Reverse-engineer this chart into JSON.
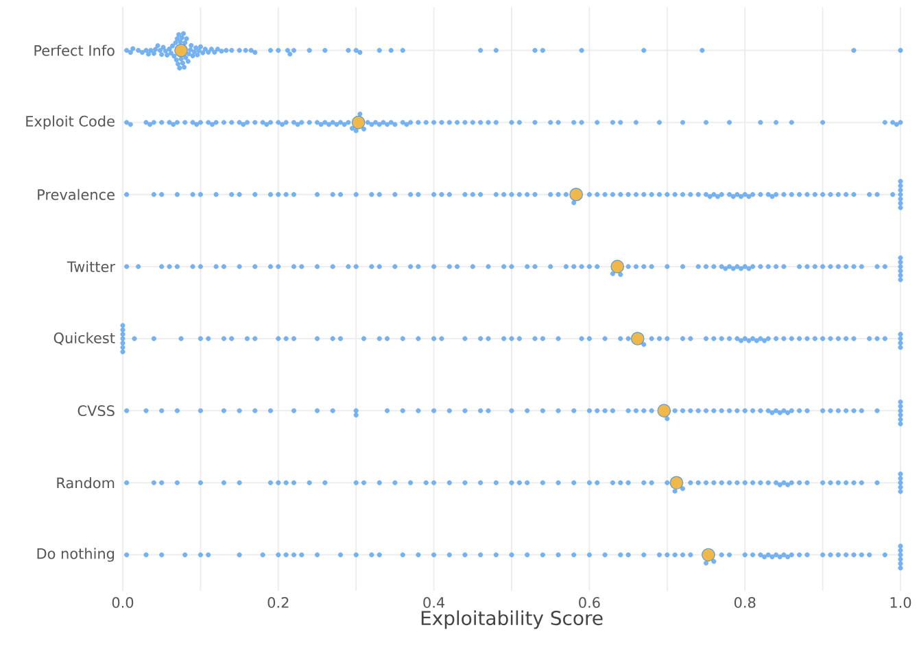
{
  "chart_data": {
    "type": "scatter",
    "orientation": "horizontal",
    "xlabel": "Exploitability Score",
    "categories": [
      "Perfect Info",
      "Exploit Code",
      "Prevalence",
      "Twitter",
      "Quickest",
      "CVSS",
      "Random",
      "Do nothing"
    ],
    "xlim": [
      0,
      1
    ],
    "xticks": [
      {
        "value": 0,
        "label": "0.0"
      },
      {
        "value": 0.1,
        "label": null
      },
      0.2,
      {
        "value": 0.3,
        "label": null
      },
      0.4,
      {
        "value": 0.5,
        "label": null
      },
      0.6,
      {
        "value": 0.7,
        "label": null
      },
      0.8,
      {
        "value": 0.9,
        "label": null
      },
      {
        "value": 1,
        "label": "1.0"
      }
    ],
    "grid": true,
    "series": [
      {
        "type": "scatter",
        "color": "#74b2f3",
        "x": [
          "Perfect Info",
          "Perfect Info",
          "Perfect Info",
          "Perfect Info",
          "Perfect Info",
          "Perfect Info",
          "Perfect Info",
          "Perfect Info",
          "Perfect Info",
          "Perfect Info",
          "Perfect Info",
          "Perfect Info",
          "Perfect Info",
          "Perfect Info",
          "Perfect Info",
          "Perfect Info",
          "Perfect Info",
          "Perfect Info",
          "Perfect Info",
          "Perfect Info",
          "Perfect Info",
          "Perfect Info",
          "Perfect Info",
          "Perfect Info",
          "Perfect Info",
          "Perfect Info",
          "Perfect Info",
          "Perfect Info",
          "Perfect Info",
          "Perfect Info",
          "Perfect Info",
          "Perfect Info",
          "Perfect Info",
          "Perfect Info",
          "Perfect Info",
          "Perfect Info",
          "Perfect Info",
          "Perfect Info",
          "Perfect Info",
          "Perfect Info",
          "Perfect Info",
          "Perfect Info",
          "Perfect Info",
          "Perfect Info",
          "Perfect Info",
          "Perfect Info",
          "Perfect Info",
          "Perfect Info",
          "Perfect Info",
          "Perfect Info",
          "Perfect Info",
          "Perfect Info",
          "Perfect Info",
          "Perfect Info",
          "Perfect Info",
          "Perfect Info",
          "Perfect Info",
          "Perfect Info",
          "Perfect Info",
          "Perfect Info",
          "Perfect Info",
          "Perfect Info",
          "Perfect Info",
          "Perfect Info",
          "Perfect Info",
          "Perfect Info",
          "Perfect Info",
          "Perfect Info",
          "Perfect Info",
          "Perfect Info",
          "Perfect Info",
          "Perfect Info",
          "Perfect Info",
          "Perfect Info",
          "Perfect Info",
          "Perfect Info",
          "Perfect Info",
          "Perfect Info",
          "Perfect Info",
          "Perfect Info"
        ],
        "values": [
          0.005,
          0.01,
          0.013,
          0.02,
          0.025,
          0.03,
          0.033,
          0.036,
          0.04,
          0.042,
          0.045,
          0.048,
          0.05,
          0.052,
          0.055,
          0.057,
          0.06,
          0.062,
          0.064,
          0.066,
          0.068,
          0.069,
          0.07,
          0.071,
          0.072,
          0.073,
          0.074,
          0.075,
          0.076,
          0.077,
          0.078,
          0.079,
          0.08,
          0.081,
          0.082,
          0.084,
          0.085,
          0.087,
          0.088,
          0.09,
          0.092,
          0.094,
          0.096,
          0.098,
          0.1,
          0.103,
          0.106,
          0.11,
          0.114,
          0.118,
          0.122,
          0.127,
          0.133,
          0.14,
          0.15,
          0.158,
          0.165,
          0.17,
          0.19,
          0.2,
          0.212,
          0.215,
          0.22,
          0.24,
          0.26,
          0.29,
          0.3,
          0.305,
          0.33,
          0.345,
          0.36,
          0.46,
          0.48,
          0.53,
          0.54,
          0.59,
          0.67,
          0.745,
          0.94,
          1.0
        ]
      },
      {
        "type": "scatter",
        "color": "#74b2f3",
        "x": [
          "Exploit Code",
          "Exploit Code",
          "Exploit Code",
          "Exploit Code",
          "Exploit Code",
          "Exploit Code",
          "Exploit Code",
          "Exploit Code",
          "Exploit Code",
          "Exploit Code",
          "Exploit Code",
          "Exploit Code",
          "Exploit Code",
          "Exploit Code",
          "Exploit Code",
          "Exploit Code",
          "Exploit Code",
          "Exploit Code",
          "Exploit Code",
          "Exploit Code",
          "Exploit Code",
          "Exploit Code",
          "Exploit Code",
          "Exploit Code",
          "Exploit Code",
          "Exploit Code",
          "Exploit Code",
          "Exploit Code",
          "Exploit Code",
          "Exploit Code",
          "Exploit Code",
          "Exploit Code",
          "Exploit Code",
          "Exploit Code",
          "Exploit Code",
          "Exploit Code",
          "Exploit Code",
          "Exploit Code",
          "Exploit Code",
          "Exploit Code",
          "Exploit Code",
          "Exploit Code",
          "Exploit Code",
          "Exploit Code",
          "Exploit Code",
          "Exploit Code",
          "Exploit Code",
          "Exploit Code",
          "Exploit Code",
          "Exploit Code",
          "Exploit Code",
          "Exploit Code",
          "Exploit Code",
          "Exploit Code",
          "Exploit Code",
          "Exploit Code",
          "Exploit Code",
          "Exploit Code",
          "Exploit Code",
          "Exploit Code",
          "Exploit Code",
          "Exploit Code",
          "Exploit Code",
          "Exploit Code",
          "Exploit Code",
          "Exploit Code",
          "Exploit Code",
          "Exploit Code",
          "Exploit Code",
          "Exploit Code",
          "Exploit Code",
          "Exploit Code",
          "Exploit Code",
          "Exploit Code",
          "Exploit Code",
          "Exploit Code",
          "Exploit Code",
          "Exploit Code",
          "Exploit Code",
          "Exploit Code",
          "Exploit Code",
          "Exploit Code",
          "Exploit Code",
          "Exploit Code",
          "Exploit Code",
          "Exploit Code",
          "Exploit Code",
          "Exploit Code",
          "Exploit Code",
          "Exploit Code"
        ],
        "values": [
          0.005,
          0.01,
          0.03,
          0.035,
          0.04,
          0.05,
          0.06,
          0.065,
          0.07,
          0.08,
          0.09,
          0.095,
          0.1,
          0.11,
          0.115,
          0.12,
          0.13,
          0.14,
          0.15,
          0.155,
          0.16,
          0.17,
          0.18,
          0.185,
          0.19,
          0.2,
          0.205,
          0.21,
          0.22,
          0.225,
          0.23,
          0.24,
          0.25,
          0.255,
          0.26,
          0.265,
          0.27,
          0.275,
          0.28,
          0.285,
          0.29,
          0.295,
          0.3,
          0.305,
          0.31,
          0.315,
          0.32,
          0.325,
          0.33,
          0.335,
          0.34,
          0.345,
          0.35,
          0.36,
          0.365,
          0.37,
          0.38,
          0.39,
          0.4,
          0.41,
          0.42,
          0.43,
          0.44,
          0.45,
          0.46,
          0.47,
          0.48,
          0.5,
          0.51,
          0.53,
          0.55,
          0.56,
          0.58,
          0.59,
          0.61,
          0.63,
          0.64,
          0.66,
          0.69,
          0.72,
          0.75,
          0.78,
          0.82,
          0.84,
          0.86,
          0.9,
          0.98,
          0.99,
          0.995,
          1.0
        ]
      },
      {
        "type": "scatter",
        "color": "#74b2f3",
        "x": [
          "Prevalence",
          "Prevalence",
          "Prevalence",
          "Prevalence",
          "Prevalence",
          "Prevalence",
          "Prevalence",
          "Prevalence",
          "Prevalence",
          "Prevalence",
          "Prevalence",
          "Prevalence",
          "Prevalence",
          "Prevalence",
          "Prevalence",
          "Prevalence",
          "Prevalence",
          "Prevalence",
          "Prevalence",
          "Prevalence",
          "Prevalence",
          "Prevalence",
          "Prevalence",
          "Prevalence",
          "Prevalence",
          "Prevalence",
          "Prevalence",
          "Prevalence",
          "Prevalence",
          "Prevalence",
          "Prevalence",
          "Prevalence",
          "Prevalence",
          "Prevalence",
          "Prevalence",
          "Prevalence",
          "Prevalence",
          "Prevalence",
          "Prevalence",
          "Prevalence",
          "Prevalence",
          "Prevalence",
          "Prevalence",
          "Prevalence",
          "Prevalence",
          "Prevalence",
          "Prevalence",
          "Prevalence",
          "Prevalence",
          "Prevalence",
          "Prevalence",
          "Prevalence",
          "Prevalence",
          "Prevalence",
          "Prevalence",
          "Prevalence",
          "Prevalence",
          "Prevalence",
          "Prevalence",
          "Prevalence",
          "Prevalence",
          "Prevalence",
          "Prevalence",
          "Prevalence",
          "Prevalence",
          "Prevalence",
          "Prevalence",
          "Prevalence",
          "Prevalence",
          "Prevalence",
          "Prevalence",
          "Prevalence",
          "Prevalence",
          "Prevalence",
          "Prevalence",
          "Prevalence",
          "Prevalence",
          "Prevalence",
          "Prevalence",
          "Prevalence",
          "Prevalence",
          "Prevalence",
          "Prevalence",
          "Prevalence",
          "Prevalence",
          "Prevalence",
          "Prevalence",
          "Prevalence",
          "Prevalence",
          "Prevalence"
        ],
        "values": [
          0.005,
          0.04,
          0.05,
          0.07,
          0.09,
          0.1,
          0.12,
          0.14,
          0.15,
          0.17,
          0.19,
          0.2,
          0.21,
          0.22,
          0.25,
          0.27,
          0.28,
          0.3,
          0.32,
          0.33,
          0.35,
          0.37,
          0.38,
          0.4,
          0.41,
          0.42,
          0.44,
          0.45,
          0.46,
          0.48,
          0.49,
          0.5,
          0.51,
          0.52,
          0.53,
          0.55,
          0.56,
          0.57,
          0.58,
          0.6,
          0.61,
          0.62,
          0.63,
          0.64,
          0.65,
          0.66,
          0.67,
          0.68,
          0.69,
          0.7,
          0.71,
          0.72,
          0.73,
          0.74,
          0.75,
          0.755,
          0.76,
          0.77,
          0.78,
          0.785,
          0.79,
          0.8,
          0.81,
          0.82,
          0.83,
          0.835,
          0.84,
          0.85,
          0.86,
          0.87,
          0.88,
          0.89,
          0.9,
          0.91,
          0.92,
          0.93,
          0.94,
          0.96,
          0.97,
          0.99,
          1.0,
          1.0,
          1.0,
          1.0,
          1.0,
          1.0,
          1.0,
          0.765,
          0.795,
          0.805
        ]
      },
      {
        "type": "scatter",
        "color": "#74b2f3",
        "x": [
          "Twitter",
          "Twitter",
          "Twitter",
          "Twitter",
          "Twitter",
          "Twitter",
          "Twitter",
          "Twitter",
          "Twitter",
          "Twitter",
          "Twitter",
          "Twitter",
          "Twitter",
          "Twitter",
          "Twitter",
          "Twitter",
          "Twitter",
          "Twitter",
          "Twitter",
          "Twitter",
          "Twitter",
          "Twitter",
          "Twitter",
          "Twitter",
          "Twitter",
          "Twitter",
          "Twitter",
          "Twitter",
          "Twitter",
          "Twitter",
          "Twitter",
          "Twitter",
          "Twitter",
          "Twitter",
          "Twitter",
          "Twitter",
          "Twitter",
          "Twitter",
          "Twitter",
          "Twitter",
          "Twitter",
          "Twitter",
          "Twitter",
          "Twitter",
          "Twitter",
          "Twitter",
          "Twitter",
          "Twitter",
          "Twitter",
          "Twitter",
          "Twitter",
          "Twitter",
          "Twitter",
          "Twitter",
          "Twitter",
          "Twitter",
          "Twitter",
          "Twitter",
          "Twitter",
          "Twitter",
          "Twitter",
          "Twitter",
          "Twitter",
          "Twitter",
          "Twitter",
          "Twitter",
          "Twitter",
          "Twitter",
          "Twitter",
          "Twitter",
          "Twitter",
          "Twitter",
          "Twitter",
          "Twitter",
          "Twitter",
          "Twitter",
          "Twitter",
          "Twitter",
          "Twitter",
          "Twitter"
        ],
        "values": [
          0.005,
          0.02,
          0.05,
          0.06,
          0.07,
          0.09,
          0.1,
          0.12,
          0.13,
          0.15,
          0.17,
          0.19,
          0.2,
          0.22,
          0.23,
          0.25,
          0.27,
          0.29,
          0.3,
          0.32,
          0.33,
          0.35,
          0.37,
          0.38,
          0.4,
          0.42,
          0.43,
          0.45,
          0.47,
          0.49,
          0.5,
          0.52,
          0.53,
          0.55,
          0.57,
          0.58,
          0.59,
          0.6,
          0.61,
          0.63,
          0.64,
          0.65,
          0.66,
          0.67,
          0.68,
          0.7,
          0.72,
          0.74,
          0.75,
          0.76,
          0.77,
          0.78,
          0.785,
          0.79,
          0.795,
          0.8,
          0.81,
          0.82,
          0.83,
          0.84,
          0.85,
          0.87,
          0.88,
          0.89,
          0.9,
          0.91,
          0.92,
          0.93,
          0.94,
          0.95,
          0.97,
          0.98,
          1.0,
          1.0,
          1.0,
          1.0,
          1.0,
          1.0,
          0.775,
          0.805
        ]
      },
      {
        "type": "scatter",
        "color": "#74b2f3",
        "x": [
          "Quickest",
          "Quickest",
          "Quickest",
          "Quickest",
          "Quickest",
          "Quickest",
          "Quickest",
          "Quickest",
          "Quickest",
          "Quickest",
          "Quickest",
          "Quickest",
          "Quickest",
          "Quickest",
          "Quickest",
          "Quickest",
          "Quickest",
          "Quickest",
          "Quickest",
          "Quickest",
          "Quickest",
          "Quickest",
          "Quickest",
          "Quickest",
          "Quickest",
          "Quickest",
          "Quickest",
          "Quickest",
          "Quickest",
          "Quickest",
          "Quickest",
          "Quickest",
          "Quickest",
          "Quickest",
          "Quickest",
          "Quickest",
          "Quickest",
          "Quickest",
          "Quickest",
          "Quickest",
          "Quickest",
          "Quickest",
          "Quickest",
          "Quickest",
          "Quickest",
          "Quickest",
          "Quickest",
          "Quickest",
          "Quickest",
          "Quickest",
          "Quickest",
          "Quickest",
          "Quickest",
          "Quickest",
          "Quickest",
          "Quickest",
          "Quickest",
          "Quickest",
          "Quickest",
          "Quickest",
          "Quickest",
          "Quickest",
          "Quickest",
          "Quickest",
          "Quickest",
          "Quickest",
          "Quickest",
          "Quickest",
          "Quickest",
          "Quickest",
          "Quickest",
          "Quickest",
          "Quickest",
          "Quickest",
          "Quickest",
          "Quickest",
          "Quickest",
          "Quickest",
          "Quickest",
          "Quickest"
        ],
        "values": [
          0.0,
          0.0,
          0.0,
          0.0,
          0.0,
          0.0,
          0.0,
          0.015,
          0.04,
          0.075,
          0.1,
          0.11,
          0.13,
          0.14,
          0.16,
          0.17,
          0.2,
          0.21,
          0.22,
          0.25,
          0.27,
          0.28,
          0.31,
          0.33,
          0.34,
          0.36,
          0.38,
          0.4,
          0.41,
          0.44,
          0.46,
          0.47,
          0.49,
          0.5,
          0.51,
          0.53,
          0.54,
          0.56,
          0.59,
          0.6,
          0.62,
          0.64,
          0.65,
          0.67,
          0.68,
          0.69,
          0.7,
          0.72,
          0.73,
          0.75,
          0.76,
          0.77,
          0.78,
          0.79,
          0.8,
          0.81,
          0.82,
          0.83,
          0.84,
          0.85,
          0.86,
          0.87,
          0.88,
          0.89,
          0.9,
          0.91,
          0.92,
          0.93,
          0.94,
          0.96,
          0.97,
          0.98,
          1.0,
          1.0,
          1.0,
          1.0,
          0.795,
          0.805,
          0.815,
          0.825
        ]
      },
      {
        "type": "scatter",
        "color": "#74b2f3",
        "x": [
          "CVSS",
          "CVSS",
          "CVSS",
          "CVSS",
          "CVSS",
          "CVSS",
          "CVSS",
          "CVSS",
          "CVSS",
          "CVSS",
          "CVSS",
          "CVSS",
          "CVSS",
          "CVSS",
          "CVSS",
          "CVSS",
          "CVSS",
          "CVSS",
          "CVSS",
          "CVSS",
          "CVSS",
          "CVSS",
          "CVSS",
          "CVSS",
          "CVSS",
          "CVSS",
          "CVSS",
          "CVSS",
          "CVSS",
          "CVSS",
          "CVSS",
          "CVSS",
          "CVSS",
          "CVSS",
          "CVSS",
          "CVSS",
          "CVSS",
          "CVSS",
          "CVSS",
          "CVSS",
          "CVSS",
          "CVSS",
          "CVSS",
          "CVSS",
          "CVSS",
          "CVSS",
          "CVSS",
          "CVSS",
          "CVSS",
          "CVSS",
          "CVSS",
          "CVSS",
          "CVSS",
          "CVSS",
          "CVSS",
          "CVSS",
          "CVSS",
          "CVSS",
          "CVSS",
          "CVSS",
          "CVSS",
          "CVSS",
          "CVSS",
          "CVSS",
          "CVSS",
          "CVSS",
          "CVSS",
          "CVSS",
          "CVSS",
          "CVSS"
        ],
        "values": [
          0.005,
          0.03,
          0.05,
          0.07,
          0.1,
          0.13,
          0.15,
          0.17,
          0.19,
          0.22,
          0.25,
          0.27,
          0.3,
          0.3,
          0.34,
          0.36,
          0.38,
          0.4,
          0.42,
          0.44,
          0.46,
          0.47,
          0.5,
          0.52,
          0.54,
          0.56,
          0.58,
          0.6,
          0.61,
          0.62,
          0.63,
          0.65,
          0.66,
          0.67,
          0.68,
          0.7,
          0.71,
          0.72,
          0.73,
          0.74,
          0.75,
          0.76,
          0.77,
          0.78,
          0.79,
          0.8,
          0.81,
          0.82,
          0.83,
          0.84,
          0.85,
          0.86,
          0.87,
          0.88,
          0.9,
          0.91,
          0.92,
          0.93,
          0.94,
          0.95,
          0.97,
          1.0,
          1.0,
          1.0,
          1.0,
          1.0,
          1.0,
          0.835,
          0.845,
          0.855
        ]
      },
      {
        "type": "scatter",
        "color": "#74b2f3",
        "x": [
          "Random",
          "Random",
          "Random",
          "Random",
          "Random",
          "Random",
          "Random",
          "Random",
          "Random",
          "Random",
          "Random",
          "Random",
          "Random",
          "Random",
          "Random",
          "Random",
          "Random",
          "Random",
          "Random",
          "Random",
          "Random",
          "Random",
          "Random",
          "Random",
          "Random",
          "Random",
          "Random",
          "Random",
          "Random",
          "Random",
          "Random",
          "Random",
          "Random",
          "Random",
          "Random",
          "Random",
          "Random",
          "Random",
          "Random",
          "Random",
          "Random",
          "Random",
          "Random",
          "Random",
          "Random",
          "Random",
          "Random",
          "Random",
          "Random",
          "Random",
          "Random",
          "Random",
          "Random",
          "Random",
          "Random",
          "Random",
          "Random",
          "Random",
          "Random",
          "Random",
          "Random",
          "Random",
          "Random",
          "Random",
          "Random",
          "Random",
          "Random",
          "Random",
          "Random",
          "Random"
        ],
        "values": [
          0.005,
          0.04,
          0.05,
          0.07,
          0.1,
          0.13,
          0.15,
          0.19,
          0.2,
          0.21,
          0.22,
          0.24,
          0.26,
          0.3,
          0.31,
          0.33,
          0.35,
          0.37,
          0.39,
          0.4,
          0.42,
          0.44,
          0.46,
          0.48,
          0.5,
          0.51,
          0.52,
          0.54,
          0.56,
          0.58,
          0.6,
          0.61,
          0.63,
          0.64,
          0.65,
          0.67,
          0.68,
          0.7,
          0.71,
          0.72,
          0.73,
          0.74,
          0.75,
          0.76,
          0.77,
          0.78,
          0.79,
          0.8,
          0.81,
          0.82,
          0.83,
          0.84,
          0.85,
          0.86,
          0.87,
          0.88,
          0.9,
          0.91,
          0.92,
          0.93,
          0.94,
          0.95,
          0.97,
          1.0,
          1.0,
          1.0,
          1.0,
          1.0,
          0.845,
          0.855
        ]
      },
      {
        "type": "scatter",
        "color": "#74b2f3",
        "x": [
          "Do nothing",
          "Do nothing",
          "Do nothing",
          "Do nothing",
          "Do nothing",
          "Do nothing",
          "Do nothing",
          "Do nothing",
          "Do nothing",
          "Do nothing",
          "Do nothing",
          "Do nothing",
          "Do nothing",
          "Do nothing",
          "Do nothing",
          "Do nothing",
          "Do nothing",
          "Do nothing",
          "Do nothing",
          "Do nothing",
          "Do nothing",
          "Do nothing",
          "Do nothing",
          "Do nothing",
          "Do nothing",
          "Do nothing",
          "Do nothing",
          "Do nothing",
          "Do nothing",
          "Do nothing",
          "Do nothing",
          "Do nothing",
          "Do nothing",
          "Do nothing",
          "Do nothing",
          "Do nothing",
          "Do nothing",
          "Do nothing",
          "Do nothing",
          "Do nothing",
          "Do nothing",
          "Do nothing",
          "Do nothing",
          "Do nothing",
          "Do nothing",
          "Do nothing",
          "Do nothing",
          "Do nothing",
          "Do nothing",
          "Do nothing",
          "Do nothing",
          "Do nothing",
          "Do nothing",
          "Do nothing",
          "Do nothing",
          "Do nothing",
          "Do nothing",
          "Do nothing",
          "Do nothing",
          "Do nothing",
          "Do nothing",
          "Do nothing",
          "Do nothing",
          "Do nothing",
          "Do nothing",
          "Do nothing",
          "Do nothing",
          "Do nothing",
          "Do nothing",
          "Do nothing"
        ],
        "values": [
          0.005,
          0.03,
          0.05,
          0.08,
          0.1,
          0.11,
          0.15,
          0.18,
          0.2,
          0.21,
          0.22,
          0.23,
          0.25,
          0.28,
          0.3,
          0.32,
          0.33,
          0.36,
          0.38,
          0.4,
          0.42,
          0.44,
          0.46,
          0.48,
          0.5,
          0.52,
          0.54,
          0.56,
          0.58,
          0.6,
          0.62,
          0.64,
          0.65,
          0.67,
          0.69,
          0.7,
          0.71,
          0.72,
          0.73,
          0.75,
          0.76,
          0.77,
          0.78,
          0.8,
          0.81,
          0.82,
          0.83,
          0.835,
          0.84,
          0.845,
          0.85,
          0.86,
          0.87,
          0.88,
          0.9,
          0.91,
          0.92,
          0.93,
          0.94,
          0.95,
          0.96,
          0.98,
          1.0,
          1.0,
          1.0,
          1.0,
          1.0,
          1.0,
          0.825,
          0.855
        ]
      },
      {
        "type": "scatter",
        "color": "#f0b84a",
        "x": [
          "Perfect Info",
          "Exploit Code",
          "Prevalence",
          "Twitter",
          "Quickest",
          "CVSS",
          "Random",
          "Do nothing"
        ],
        "values": [
          0.075,
          0.303,
          0.583,
          0.636,
          0.662,
          0.696,
          0.712,
          0.753
        ]
      }
    ]
  }
}
